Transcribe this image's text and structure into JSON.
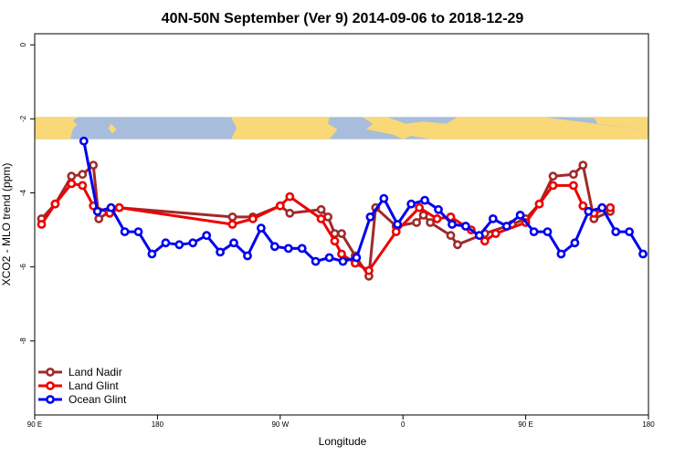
{
  "chart_data": {
    "type": "line",
    "title": "40N-50N September (Ver 9)   2014-09-06 to 2018-12-29",
    "xlabel": "Longitude",
    "ylabel": "XCO2 - MLO trend (ppm)",
    "xlim": [
      90,
      540
    ],
    "ylim": [
      -10,
      0.3
    ],
    "x_ticks": [
      {
        "value": 90,
        "label": "90 E"
      },
      {
        "value": 180,
        "label": "180"
      },
      {
        "value": 270,
        "label": "90 W"
      },
      {
        "value": 360,
        "label": "0"
      },
      {
        "value": 450,
        "label": "90 E"
      },
      {
        "value": 540,
        "label": "180"
      }
    ],
    "y_ticks": [
      0,
      -2,
      -4,
      -6,
      -8
    ],
    "legend_position": "bottom-left",
    "map_band": {
      "y_top": -1.95,
      "y_bottom": -2.55,
      "ocean_color": "#a8bddb",
      "land_color": "#f8d877"
    },
    "series": [
      {
        "name": "Land Nadir",
        "color": "#a02a2a",
        "x": [
          95,
          105,
          117,
          125,
          133,
          137,
          145,
          152,
          235,
          250,
          270,
          277,
          300,
          305,
          310,
          315,
          325,
          335,
          340,
          355,
          370,
          375,
          380,
          395,
          400,
          420,
          440,
          450,
          460,
          470,
          485,
          492,
          500,
          512
        ],
        "y": [
          -4.7,
          -4.3,
          -3.55,
          -3.5,
          -3.25,
          -4.7,
          -4.5,
          -4.4,
          -4.65,
          -4.65,
          -4.35,
          -4.55,
          -4.45,
          -4.65,
          -5.1,
          -5.1,
          -5.7,
          -6.25,
          -4.4,
          -4.9,
          -4.8,
          -4.6,
          -4.8,
          -5.15,
          -5.4,
          -5.1,
          -4.85,
          -4.7,
          -4.3,
          -3.55,
          -3.5,
          -3.25,
          -4.7,
          -4.5
        ]
      },
      {
        "name": "Land Glint",
        "color": "#ee0000",
        "x": [
          95,
          105,
          117,
          125,
          133,
          145,
          152,
          235,
          250,
          270,
          277,
          300,
          310,
          315,
          325,
          335,
          355,
          372,
          385,
          395,
          410,
          420,
          428,
          450,
          460,
          470,
          485,
          492,
          500,
          512
        ],
        "y": [
          -4.85,
          -4.3,
          -3.75,
          -3.8,
          -4.35,
          -4.55,
          -4.4,
          -4.85,
          -4.7,
          -4.35,
          -4.1,
          -4.7,
          -5.3,
          -5.65,
          -5.9,
          -6.1,
          -5.05,
          -4.4,
          -4.7,
          -4.65,
          -5.0,
          -5.3,
          -5.1,
          -4.8,
          -4.3,
          -3.8,
          -3.8,
          -4.35,
          -4.55,
          -4.4
        ]
      },
      {
        "name": "Ocean Glint",
        "color": "#0000ee",
        "x": [
          126,
          136,
          146,
          156,
          166,
          176,
          186,
          196,
          206,
          216,
          226,
          236,
          246,
          256,
          266,
          276,
          286,
          296,
          306,
          316,
          326,
          336,
          346,
          356,
          366,
          376,
          386,
          396,
          406,
          416,
          426,
          436,
          446,
          456,
          466,
          476,
          486,
          496,
          506,
          516,
          526,
          536
        ],
        "y": [
          -2.6,
          -4.5,
          -4.4,
          -5.05,
          -5.05,
          -5.65,
          -5.35,
          -5.4,
          -5.35,
          -5.15,
          -5.6,
          -5.35,
          -5.7,
          -4.95,
          -5.45,
          -5.5,
          -5.5,
          -5.85,
          -5.75,
          -5.85,
          -5.75,
          -4.65,
          -4.15,
          -4.85,
          -4.3,
          -4.2,
          -4.45,
          -4.85,
          -4.9,
          -5.15,
          -4.7,
          -4.9,
          -4.6,
          -5.05,
          -5.05,
          -5.65,
          -5.35,
          -4.5,
          -4.4,
          -5.05,
          -5.05,
          -5.65
        ]
      }
    ]
  }
}
